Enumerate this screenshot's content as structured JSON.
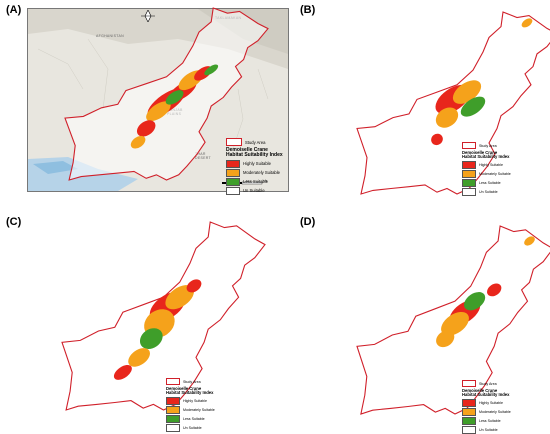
{
  "panels": [
    {
      "label": "(A)"
    },
    {
      "label": "(B)"
    },
    {
      "label": "(C)"
    },
    {
      "label": "(D)"
    }
  ],
  "legend": {
    "study_area": "Study Area",
    "title_line1": "Demoiselle Crane",
    "title_line2": "Habitat Suitability Index",
    "classes": [
      {
        "label": "Highly Suitable",
        "color": "#e8261c"
      },
      {
        "label": "Moderately Suitable",
        "color": "#f5a21b"
      },
      {
        "label": "Less Suitable",
        "color": "#3f9e2a"
      },
      {
        "label": "Un Suitable",
        "color": "#ffffff"
      }
    ]
  },
  "basemap": {
    "places": [
      "AFGHANISTAN",
      "PUNJAB PLAINS",
      "THAR DESERT",
      "TAKLAMAKAN"
    ],
    "scale_label": "km",
    "scale_value": "375"
  },
  "colors": {
    "boundary": "#d0202a",
    "basemap": "#e8e6df"
  }
}
